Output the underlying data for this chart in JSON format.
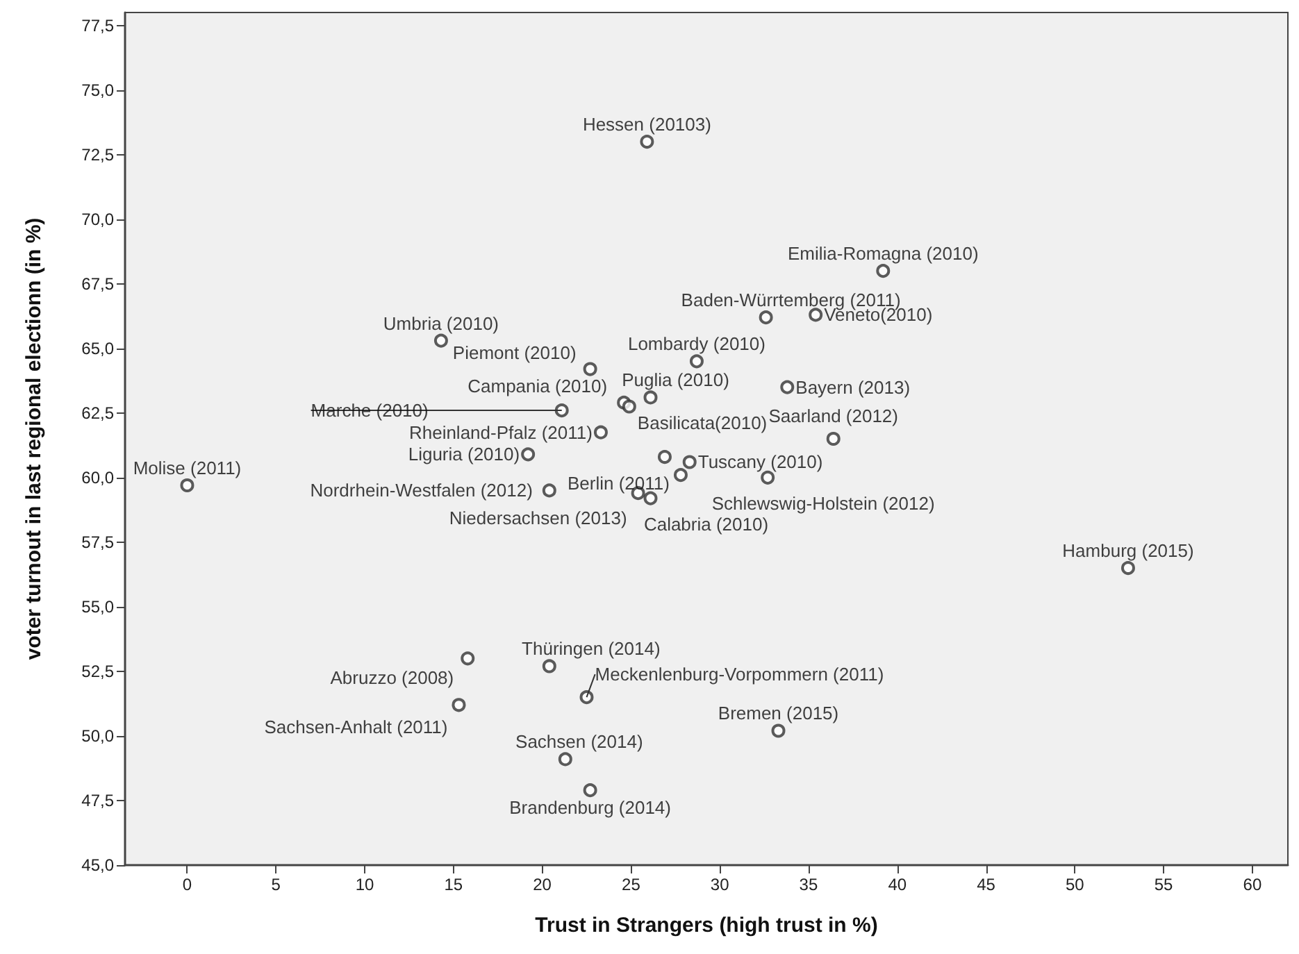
{
  "chart_data": {
    "type": "scatter",
    "xlabel": "Trust in Strangers (high trust in %)",
    "ylabel": "voter turnout in last regional electionn (in %)",
    "x": [
      25.9,
      39.2,
      32.6,
      35.4,
      14.3,
      22.7,
      28.7,
      26.1,
      24.6,
      24.9,
      33.8,
      21.1,
      36.4,
      23.3,
      0,
      19.2,
      27.8,
      28.3,
      20.4,
      32.7,
      25.4,
      26.1,
      53,
      20.4,
      15.8,
      22.5,
      15.3,
      21.3,
      22.7,
      33.3,
      26.9
    ],
    "values": [
      73.0,
      68.0,
      66.2,
      66.3,
      65.3,
      64.2,
      64.5,
      63.1,
      62.9,
      62.75,
      63.5,
      62.6,
      61.5,
      61.75,
      59.7,
      60.9,
      60.1,
      60.6,
      59.5,
      60.0,
      59.4,
      59.2,
      56.5,
      52.7,
      53.0,
      51.5,
      51.2,
      49.1,
      47.9,
      50.2,
      60.8
    ],
    "color": "#333333",
    "marker": "circle",
    "xlim": [
      -3.5,
      62
    ],
    "ylim": [
      45,
      78
    ],
    "xticks": [
      0,
      5,
      10,
      15,
      20,
      25,
      30,
      35,
      40,
      45,
      50,
      55,
      60
    ],
    "yticks": [
      {
        "value": 45,
        "label": "45,0"
      },
      {
        "value": 47.5,
        "label": "47,5"
      },
      {
        "value": 50,
        "label": "50,0"
      },
      {
        "value": 52.5,
        "label": "52,5"
      },
      {
        "value": 55,
        "label": "55,0"
      },
      {
        "value": 57.5,
        "label": "57,5"
      },
      {
        "value": 60,
        "label": "60,0"
      },
      {
        "value": 62.5,
        "label": "62,5"
      },
      {
        "value": 65,
        "label": "65,0"
      },
      {
        "value": 67.5,
        "label": "67,5"
      },
      {
        "value": 70,
        "label": "70,0"
      },
      {
        "value": 72.5,
        "label": "72,5"
      },
      {
        "value": 75,
        "label": "75,0"
      },
      {
        "value": 77.5,
        "label": "77,5"
      }
    ],
    "annotations": [
      {
        "text": "Hessen (20103)",
        "x": 25.9,
        "y": 73.0
      },
      {
        "text": "Emilia-Romagna (2010)",
        "x": 39.2,
        "y": 68.0
      },
      {
        "text": "Baden-Würrtemberg (2011)",
        "x": 32.6,
        "y": 66.2
      },
      {
        "text": "Veneto(2010)",
        "x": 35.4,
        "y": 66.3
      },
      {
        "text": "Umbria (2010)",
        "x": 14.3,
        "y": 65.3
      },
      {
        "text": "Piemont (2010)",
        "x": 22.7,
        "y": 64.2
      },
      {
        "text": "Lombardy (2010)",
        "x": 28.7,
        "y": 64.5
      },
      {
        "text": "Puglia (2010)",
        "x": 26.1,
        "y": 63.1
      },
      {
        "text": "Campania (2010)",
        "x": 24.6,
        "y": 62.9
      },
      {
        "text": "Basilicata(2010)",
        "x": 24.9,
        "y": 62.75
      },
      {
        "text": "Bayern (2013)",
        "x": 33.8,
        "y": 63.5
      },
      {
        "text": "Marche (2010)",
        "x": 21.1,
        "y": 62.6
      },
      {
        "text": "Saarland (2012)",
        "x": 36.4,
        "y": 61.5
      },
      {
        "text": "Rheinland-Pfalz (2011)",
        "x": 23.3,
        "y": 61.75
      },
      {
        "text": "Molise (2011)",
        "x": 0,
        "y": 59.7
      },
      {
        "text": "Liguria (2010)",
        "x": 19.2,
        "y": 60.9
      },
      {
        "text": "Berlin (2011)",
        "x": 27.8,
        "y": 60.1
      },
      {
        "text": "Tuscany (2010)",
        "x": 28.3,
        "y": 60.6
      },
      {
        "text": "Nordrhein-Westfalen (2012)",
        "x": 20.4,
        "y": 59.5
      },
      {
        "text": "Schlewswig-Holstein (2012)",
        "x": 32.7,
        "y": 60.0
      },
      {
        "text": "Niedersachsen (2013)",
        "x": 25.4,
        "y": 59.4
      },
      {
        "text": "Calabria (2010)",
        "x": 26.1,
        "y": 59.2
      },
      {
        "text": "Hamburg (2015)",
        "x": 53,
        "y": 56.5
      },
      {
        "text": "Thüringen (2014)",
        "x": 20.4,
        "y": 52.7
      },
      {
        "text": "Abruzzo (2008)",
        "x": 15.8,
        "y": 53.0
      },
      {
        "text": "Meckenlenburg-Vorpommern (2011)",
        "x": 22.5,
        "y": 51.5
      },
      {
        "text": "Sachsen-Anhalt (2011)",
        "x": 15.3,
        "y": 51.2
      },
      {
        "text": "Sachsen (2014)",
        "x": 21.3,
        "y": 49.1
      },
      {
        "text": "Brandenburg (2014)",
        "x": 22.7,
        "y": 47.9
      },
      {
        "text": "Bremen (2015)",
        "x": 33.3,
        "y": 50.2
      }
    ]
  }
}
